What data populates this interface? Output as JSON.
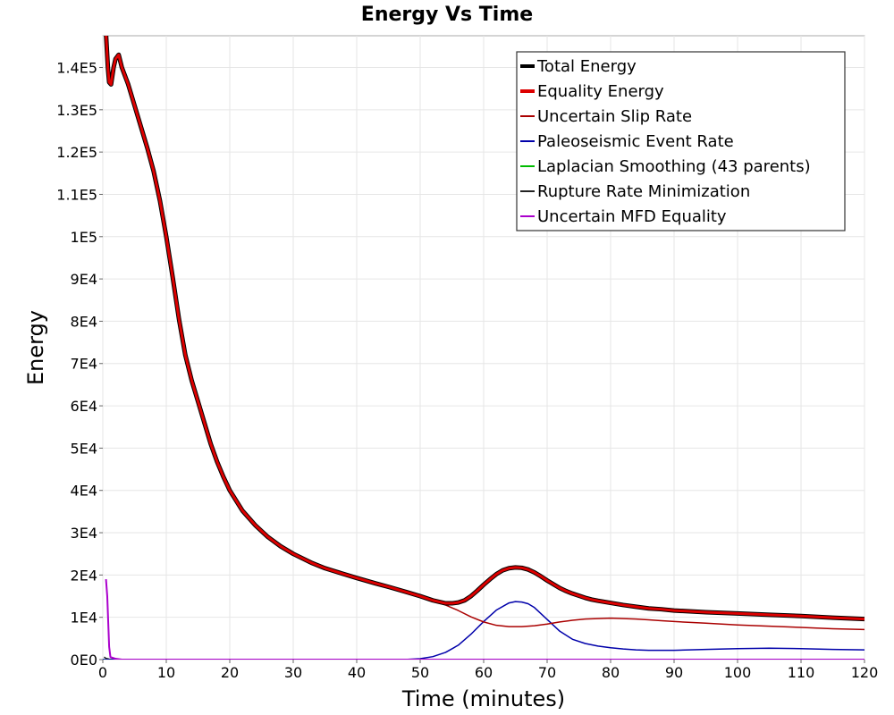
{
  "chart_data": {
    "type": "line",
    "title": "Energy Vs Time",
    "xlabel": "Time (minutes)",
    "ylabel": "Energy",
    "xlim": [
      0,
      120
    ],
    "ylim": [
      0,
      147500
    ],
    "xticks": [
      0,
      10,
      20,
      30,
      40,
      50,
      60,
      70,
      80,
      90,
      100,
      110,
      120
    ],
    "yticks": [
      {
        "value": 0,
        "label": "0E0"
      },
      {
        "value": 10000,
        "label": "1E4"
      },
      {
        "value": 20000,
        "label": "2E4"
      },
      {
        "value": 30000,
        "label": "3E4"
      },
      {
        "value": 40000,
        "label": "4E4"
      },
      {
        "value": 50000,
        "label": "5E4"
      },
      {
        "value": 60000,
        "label": "6E4"
      },
      {
        "value": 70000,
        "label": "7E4"
      },
      {
        "value": 80000,
        "label": "8E4"
      },
      {
        "value": 90000,
        "label": "9E4"
      },
      {
        "value": 100000,
        "label": "1E5"
      },
      {
        "value": 110000,
        "label": "1.1E5"
      },
      {
        "value": 120000,
        "label": "1.2E5"
      },
      {
        "value": 130000,
        "label": "1.3E5"
      },
      {
        "value": 140000,
        "label": "1.4E5"
      }
    ],
    "grid": true,
    "legend_position": "top-right",
    "series": [
      {
        "name": "Total Energy",
        "color": "#000000",
        "width": 5,
        "x": [
          0.5,
          0.8,
          1.0,
          1.3,
          1.7,
          2.0,
          2.5,
          3,
          4,
          5,
          6,
          7,
          8,
          9,
          10,
          11,
          12,
          13,
          14,
          15,
          16,
          17,
          18,
          19,
          20,
          22,
          24,
          26,
          28,
          30,
          33,
          35,
          38,
          40,
          43,
          45,
          48,
          50,
          52,
          54,
          55,
          56,
          57,
          58,
          59,
          60,
          61,
          62,
          63,
          64,
          65,
          66,
          67,
          68,
          69,
          70,
          71,
          72,
          73,
          74,
          75,
          76,
          77,
          78,
          80,
          82,
          84,
          86,
          88,
          90,
          95,
          100,
          105,
          110,
          115,
          120
        ],
        "y": [
          148000,
          140000,
          136500,
          136000,
          140000,
          142000,
          143000,
          140000,
          136000,
          131000,
          126000,
          121000,
          115500,
          108500,
          100000,
          90500,
          80500,
          72000,
          66000,
          61000,
          56000,
          51000,
          46800,
          43200,
          40000,
          35200,
          31800,
          29000,
          26800,
          25000,
          22800,
          21600,
          20200,
          19300,
          18000,
          17200,
          15900,
          15000,
          14000,
          13300,
          13300,
          13500,
          14000,
          15000,
          16300,
          17700,
          19000,
          20200,
          21100,
          21600,
          21800,
          21700,
          21300,
          20600,
          19700,
          18700,
          17800,
          16900,
          16200,
          15600,
          15100,
          14600,
          14200,
          13900,
          13400,
          12900,
          12500,
          12100,
          11900,
          11600,
          11200,
          10900,
          10600,
          10300,
          9900,
          9600
        ]
      },
      {
        "name": "Equality Energy",
        "color": "#dd0000",
        "width": 3,
        "x": [
          0.5,
          0.8,
          1.0,
          1.3,
          1.7,
          2.0,
          2.5,
          3,
          4,
          5,
          6,
          7,
          8,
          9,
          10,
          11,
          12,
          13,
          14,
          15,
          16,
          17,
          18,
          19,
          20,
          22,
          24,
          26,
          28,
          30,
          33,
          35,
          38,
          40,
          43,
          45,
          48,
          50,
          52,
          54,
          55,
          56,
          57,
          58,
          59,
          60,
          61,
          62,
          63,
          64,
          65,
          66,
          67,
          68,
          69,
          70,
          71,
          72,
          73,
          74,
          75,
          76,
          77,
          78,
          80,
          82,
          84,
          86,
          88,
          90,
          95,
          100,
          105,
          110,
          115,
          120
        ],
        "y": [
          148000,
          140000,
          136500,
          136000,
          140000,
          142000,
          143000,
          140000,
          136000,
          131000,
          126000,
          121000,
          115500,
          108500,
          100000,
          90500,
          80500,
          72000,
          66000,
          61000,
          56000,
          51000,
          46800,
          43200,
          40000,
          35200,
          31800,
          29000,
          26800,
          25000,
          22800,
          21600,
          20200,
          19300,
          18000,
          17200,
          15900,
          15000,
          14000,
          13300,
          13300,
          13500,
          14000,
          15000,
          16300,
          17700,
          19000,
          20200,
          21100,
          21600,
          21800,
          21700,
          21300,
          20600,
          19700,
          18700,
          17800,
          16900,
          16200,
          15600,
          15100,
          14600,
          14200,
          13900,
          13400,
          12900,
          12500,
          12100,
          11900,
          11600,
          11200,
          10900,
          10600,
          10300,
          9900,
          9600
        ]
      },
      {
        "name": "Uncertain Slip Rate",
        "color": "#aa0000",
        "width": 1.5,
        "x": [
          0.5,
          0.8,
          1.0,
          1.3,
          1.7,
          2.0,
          2.5,
          3,
          4,
          5,
          6,
          7,
          8,
          9,
          10,
          11,
          12,
          13,
          14,
          15,
          16,
          17,
          18,
          19,
          20,
          22,
          24,
          26,
          28,
          30,
          33,
          35,
          38,
          40,
          43,
          45,
          48,
          50,
          52,
          54,
          56,
          58,
          60,
          62,
          64,
          66,
          68,
          70,
          72,
          74,
          76,
          78,
          80,
          82,
          84,
          86,
          88,
          90,
          95,
          100,
          105,
          110,
          115,
          120
        ],
        "y": [
          148000,
          140000,
          136500,
          136000,
          140000,
          142000,
          143000,
          140000,
          136000,
          131000,
          126000,
          121000,
          115500,
          108500,
          100000,
          90500,
          80500,
          72000,
          66000,
          61000,
          56000,
          51000,
          46800,
          43200,
          40000,
          35200,
          31800,
          29000,
          26800,
          25000,
          22800,
          21600,
          20200,
          19300,
          18000,
          17200,
          15900,
          15000,
          14000,
          12900,
          11600,
          10100,
          8900,
          8100,
          7800,
          7800,
          8000,
          8400,
          8900,
          9300,
          9600,
          9700,
          9800,
          9700,
          9600,
          9400,
          9200,
          9000,
          8600,
          8200,
          7900,
          7600,
          7300,
          7100
        ]
      },
      {
        "name": "Paleoseismic Event Rate",
        "color": "#0000aa",
        "width": 1.5,
        "x": [
          0,
          45,
          48,
          50,
          52,
          54,
          56,
          58,
          60,
          62,
          64,
          65,
          66,
          67,
          68,
          70,
          72,
          74,
          76,
          78,
          80,
          82,
          84,
          86,
          88,
          90,
          95,
          100,
          105,
          110,
          115,
          120
        ],
        "y": [
          0,
          0,
          50,
          200,
          700,
          1700,
          3400,
          6000,
          9000,
          11700,
          13400,
          13700,
          13600,
          13200,
          12300,
          9500,
          6700,
          4800,
          3800,
          3200,
          2800,
          2500,
          2300,
          2200,
          2200,
          2200,
          2400,
          2600,
          2700,
          2600,
          2400,
          2300
        ]
      },
      {
        "name": "Laplacian Smoothing (43 parents)",
        "color": "#00bb00",
        "width": 1.5,
        "x": [
          0,
          120
        ],
        "y": [
          0,
          0
        ]
      },
      {
        "name": "Rupture Rate Minimization",
        "color": "#222222",
        "width": 1.5,
        "x": [
          0.2,
          0.5,
          1.0,
          2.0,
          120
        ],
        "y": [
          600,
          300,
          100,
          0,
          0
        ]
      },
      {
        "name": "Uncertain MFD Equality",
        "color": "#aa00cc",
        "width": 2,
        "x": [
          0.5,
          0.7,
          1.0,
          1.2,
          2.0,
          3.0,
          120
        ],
        "y": [
          19000,
          15000,
          3000,
          600,
          200,
          0,
          0
        ]
      }
    ]
  }
}
